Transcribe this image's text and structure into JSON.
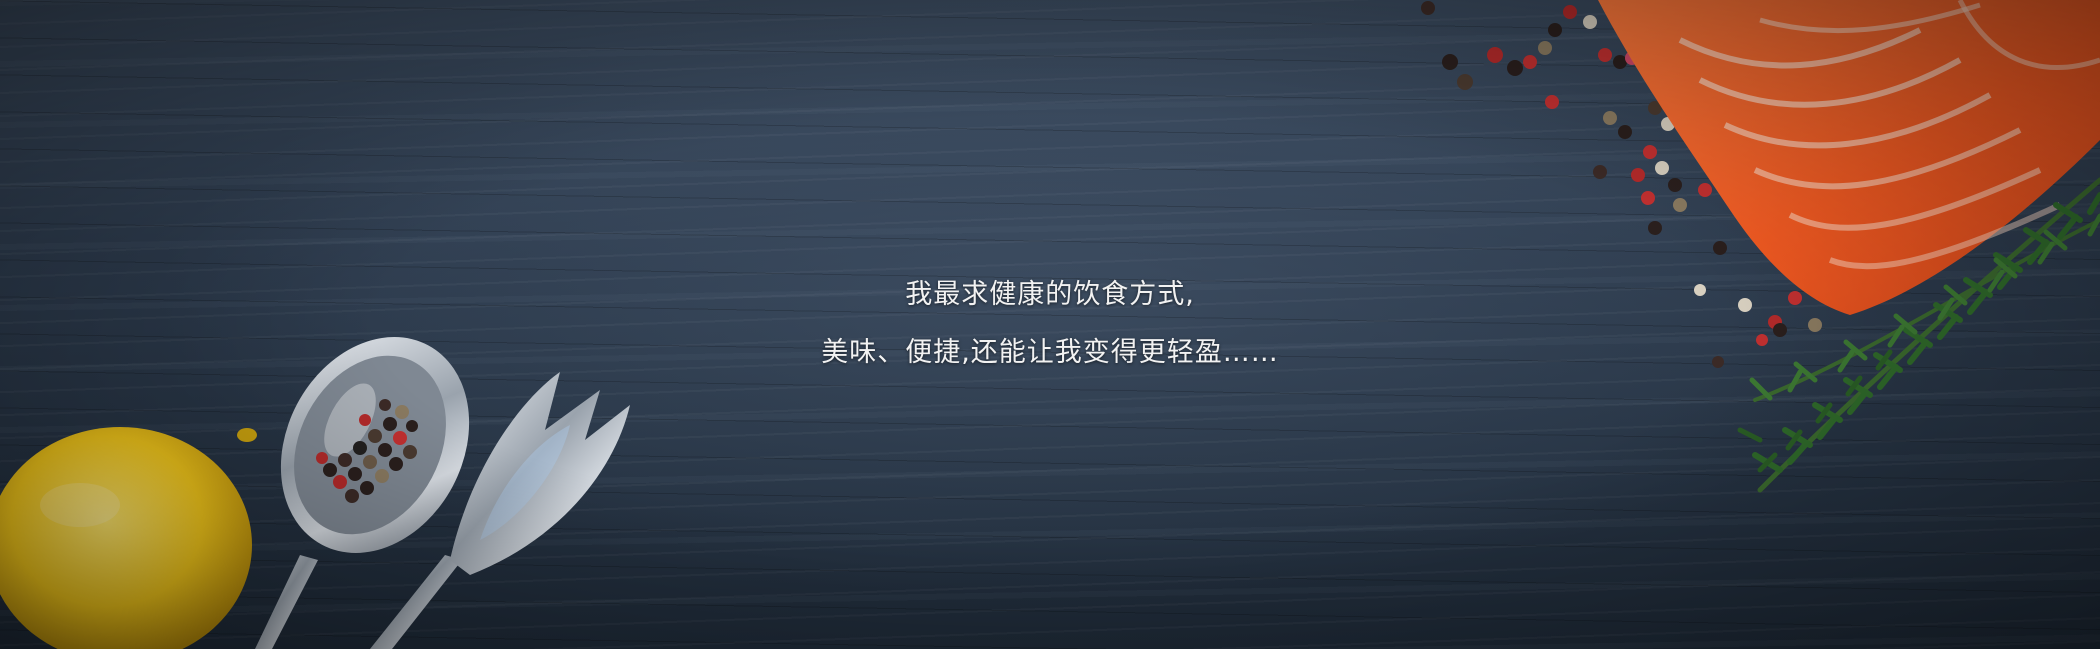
{
  "banner": {
    "tagline_line1": "我最求健康的饮食方式,",
    "tagline_line2": "美味、便捷,还能让我变得更轻盈……"
  },
  "colors": {
    "wood_background": "#2c3a4c",
    "text": "#f2f2f2",
    "salmon": "#f26a2e",
    "lemon": "#f2c81e",
    "rosemary": "#2f6a2a",
    "spoon_silver": "#c9ced6"
  },
  "objects": [
    "lemon-icon",
    "spoon-with-peppercorns-icon",
    "serving-fork-icon",
    "salmon-fillet-icon",
    "rosemary-sprig-icon",
    "peppercorns-icon"
  ]
}
